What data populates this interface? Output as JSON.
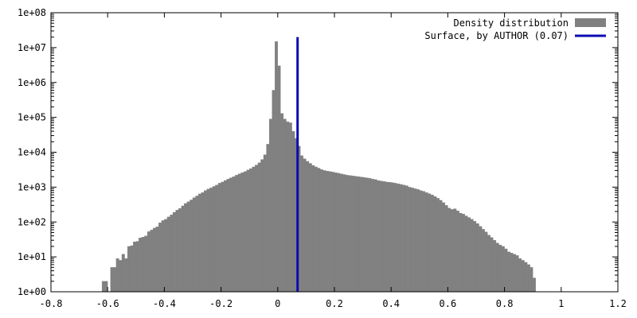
{
  "chart_data": {
    "type": "bar",
    "scale_y": "log",
    "grid": false,
    "legend_position": "top-right",
    "xlim": [
      -0.8,
      1.2
    ],
    "ylim": [
      1,
      100000000
    ],
    "x_ticks": [
      -0.8,
      -0.6,
      -0.4,
      -0.2,
      0,
      0.2,
      0.4,
      0.6,
      0.8,
      1,
      1.2
    ],
    "x_tick_labels": [
      "-0.8",
      "-0.6",
      "-0.4",
      "-0.2",
      "0",
      "0.2",
      "0.4",
      "0.6",
      "0.8",
      "1",
      "1.2"
    ],
    "y_ticks": [
      1,
      10,
      100,
      1000,
      10000,
      100000,
      1000000,
      10000000,
      100000000
    ],
    "y_tick_labels": [
      "1e+00",
      "1e+01",
      "1e+02",
      "1e+03",
      "1e+04",
      "1e+05",
      "1e+06",
      "1e+07",
      "1e+08"
    ],
    "bin_width": 0.01,
    "series": [
      {
        "name": "Density distribution",
        "kind": "histogram",
        "color": "#808080",
        "bins": [
          [
            -0.62,
            2
          ],
          [
            -0.61,
            2
          ],
          [
            -0.59,
            5
          ],
          [
            -0.58,
            5
          ],
          [
            -0.57,
            9
          ],
          [
            -0.56,
            8
          ],
          [
            -0.55,
            12
          ],
          [
            -0.54,
            9
          ],
          [
            -0.53,
            20
          ],
          [
            -0.52,
            21
          ],
          [
            -0.51,
            27
          ],
          [
            -0.5,
            28
          ],
          [
            -0.49,
            35
          ],
          [
            -0.48,
            37
          ],
          [
            -0.47,
            40
          ],
          [
            -0.46,
            53
          ],
          [
            -0.45,
            59
          ],
          [
            -0.44,
            67
          ],
          [
            -0.43,
            73
          ],
          [
            -0.42,
            95
          ],
          [
            -0.41,
            110
          ],
          [
            -0.4,
            120
          ],
          [
            -0.39,
            140
          ],
          [
            -0.38,
            160
          ],
          [
            -0.37,
            190
          ],
          [
            -0.36,
            220
          ],
          [
            -0.35,
            245
          ],
          [
            -0.34,
            290
          ],
          [
            -0.33,
            340
          ],
          [
            -0.32,
            380
          ],
          [
            -0.31,
            430
          ],
          [
            -0.3,
            500
          ],
          [
            -0.29,
            560
          ],
          [
            -0.28,
            640
          ],
          [
            -0.27,
            700
          ],
          [
            -0.26,
            800
          ],
          [
            -0.25,
            880
          ],
          [
            -0.24,
            950
          ],
          [
            -0.23,
            1050
          ],
          [
            -0.22,
            1150
          ],
          [
            -0.21,
            1300
          ],
          [
            -0.2,
            1400
          ],
          [
            -0.19,
            1550
          ],
          [
            -0.18,
            1700
          ],
          [
            -0.17,
            1850
          ],
          [
            -0.16,
            2000
          ],
          [
            -0.15,
            2200
          ],
          [
            -0.14,
            2400
          ],
          [
            -0.13,
            2600
          ],
          [
            -0.12,
            2800
          ],
          [
            -0.11,
            3100
          ],
          [
            -0.1,
            3400
          ],
          [
            -0.09,
            3800
          ],
          [
            -0.08,
            4300
          ],
          [
            -0.07,
            5000
          ],
          [
            -0.06,
            6200
          ],
          [
            -0.05,
            8500
          ],
          [
            -0.04,
            17000
          ],
          [
            -0.03,
            90000
          ],
          [
            -0.02,
            600000
          ],
          [
            -0.01,
            15000000
          ],
          [
            0.0,
            3000000
          ],
          [
            0.01,
            130000
          ],
          [
            0.02,
            90000
          ],
          [
            0.03,
            75000
          ],
          [
            0.04,
            70000
          ],
          [
            0.05,
            40000
          ],
          [
            0.06,
            25000
          ],
          [
            0.07,
            15000
          ],
          [
            0.08,
            8000
          ],
          [
            0.09,
            6500
          ],
          [
            0.1,
            5500
          ],
          [
            0.11,
            4800
          ],
          [
            0.12,
            4200
          ],
          [
            0.13,
            3800
          ],
          [
            0.14,
            3500
          ],
          [
            0.15,
            3200
          ],
          [
            0.16,
            3000
          ],
          [
            0.17,
            2900
          ],
          [
            0.18,
            2800
          ],
          [
            0.19,
            2700
          ],
          [
            0.2,
            2600
          ],
          [
            0.21,
            2500
          ],
          [
            0.22,
            2400
          ],
          [
            0.23,
            2300
          ],
          [
            0.24,
            2200
          ],
          [
            0.25,
            2150
          ],
          [
            0.26,
            2100
          ],
          [
            0.27,
            2050
          ],
          [
            0.28,
            2000
          ],
          [
            0.29,
            1950
          ],
          [
            0.3,
            1900
          ],
          [
            0.31,
            1850
          ],
          [
            0.32,
            1800
          ],
          [
            0.33,
            1700
          ],
          [
            0.34,
            1650
          ],
          [
            0.35,
            1550
          ],
          [
            0.36,
            1500
          ],
          [
            0.37,
            1450
          ],
          [
            0.38,
            1400
          ],
          [
            0.39,
            1380
          ],
          [
            0.4,
            1350
          ],
          [
            0.41,
            1300
          ],
          [
            0.42,
            1250
          ],
          [
            0.43,
            1200
          ],
          [
            0.44,
            1150
          ],
          [
            0.45,
            1100
          ],
          [
            0.46,
            1000
          ],
          [
            0.47,
            950
          ],
          [
            0.48,
            900
          ],
          [
            0.49,
            860
          ],
          [
            0.5,
            800
          ],
          [
            0.51,
            760
          ],
          [
            0.52,
            700
          ],
          [
            0.53,
            650
          ],
          [
            0.54,
            600
          ],
          [
            0.55,
            540
          ],
          [
            0.56,
            480
          ],
          [
            0.57,
            420
          ],
          [
            0.58,
            360
          ],
          [
            0.59,
            300
          ],
          [
            0.6,
            250
          ],
          [
            0.61,
            230
          ],
          [
            0.62,
            240
          ],
          [
            0.63,
            210
          ],
          [
            0.64,
            180
          ],
          [
            0.65,
            170
          ],
          [
            0.66,
            150
          ],
          [
            0.67,
            135
          ],
          [
            0.68,
            120
          ],
          [
            0.69,
            105
          ],
          [
            0.7,
            90
          ],
          [
            0.71,
            75
          ],
          [
            0.72,
            62
          ],
          [
            0.73,
            52
          ],
          [
            0.74,
            42
          ],
          [
            0.75,
            36
          ],
          [
            0.76,
            30
          ],
          [
            0.77,
            25
          ],
          [
            0.78,
            22
          ],
          [
            0.79,
            20
          ],
          [
            0.8,
            17
          ],
          [
            0.81,
            14
          ],
          [
            0.82,
            13
          ],
          [
            0.83,
            12
          ],
          [
            0.84,
            11
          ],
          [
            0.85,
            9
          ],
          [
            0.86,
            8
          ],
          [
            0.87,
            7
          ],
          [
            0.88,
            6
          ],
          [
            0.89,
            5
          ],
          [
            0.9,
            2.5
          ]
        ]
      },
      {
        "name": "Surface, by AUTHOR (0.07)",
        "kind": "vline",
        "color": "#0a0ab4",
        "x": 0.07,
        "y_range": [
          1,
          20000000
        ]
      }
    ]
  }
}
